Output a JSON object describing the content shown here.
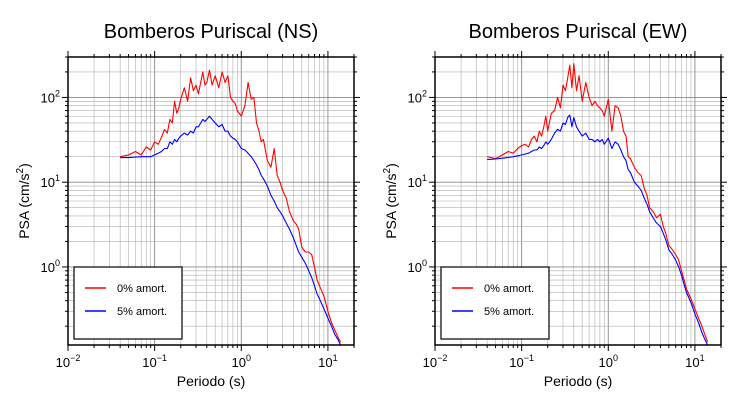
{
  "chart_data": [
    {
      "type": "line",
      "title": "Bomberos Puriscal (NS)",
      "xlabel": "Periodo (s)",
      "ylabel": "PSA (cm/s²)",
      "ylabel_main": "PSA (cm/s",
      "ylabel_sup": "2",
      "ylabel_close": ")",
      "x_scale": "log",
      "y_scale": "log",
      "xlim": [
        0.01,
        20
      ],
      "ylim": [
        0.12,
        300
      ],
      "grid": true,
      "legend_position": "bottom-left",
      "x_ticks": [
        {
          "value": 0.01,
          "base": "10",
          "exp": "−2"
        },
        {
          "value": 0.1,
          "base": "10",
          "exp": "−1"
        },
        {
          "value": 1,
          "base": "10",
          "exp": "0"
        },
        {
          "value": 10,
          "base": "10",
          "exp": "1"
        }
      ],
      "y_ticks": [
        {
          "value": 1,
          "base": "10",
          "exp": "0"
        },
        {
          "value": 10,
          "base": "10",
          "exp": "1"
        },
        {
          "value": 100,
          "base": "10",
          "exp": "2"
        }
      ],
      "series": [
        {
          "name": "0% amort.",
          "color": "#ff0000",
          "x": [
            0.04,
            0.05,
            0.06,
            0.07,
            0.08,
            0.09,
            0.1,
            0.11,
            0.12,
            0.13,
            0.14,
            0.15,
            0.16,
            0.17,
            0.18,
            0.19,
            0.2,
            0.22,
            0.24,
            0.26,
            0.28,
            0.3,
            0.32,
            0.34,
            0.36,
            0.38,
            0.4,
            0.43,
            0.46,
            0.5,
            0.55,
            0.6,
            0.65,
            0.7,
            0.75,
            0.8,
            0.85,
            0.9,
            1.0,
            1.1,
            1.2,
            1.3,
            1.4,
            1.5,
            1.6,
            1.7,
            1.8,
            2.0,
            2.2,
            2.4,
            2.6,
            2.8,
            3.0,
            3.3,
            3.6,
            4.0,
            4.3,
            4.6,
            5.0,
            5.5,
            6.0,
            6.5,
            7.0,
            7.5,
            8.0,
            9.0,
            10.0,
            11.0,
            12.0,
            13.0,
            14.0
          ],
          "y": [
            20,
            21,
            23,
            21,
            26,
            24,
            30,
            28,
            34,
            42,
            38,
            55,
            50,
            90,
            65,
            75,
            95,
            130,
            90,
            170,
            120,
            140,
            110,
            150,
            200,
            140,
            150,
            210,
            140,
            180,
            130,
            200,
            150,
            180,
            100,
            90,
            85,
            70,
            60,
            80,
            150,
            95,
            100,
            50,
            40,
            30,
            32,
            18,
            15,
            25,
            12,
            10,
            8,
            6.5,
            4.5,
            3.5,
            3.2,
            2.8,
            1.7,
            1.5,
            1.5,
            1.4,
            1.0,
            0.7,
            0.6,
            0.45,
            0.3,
            0.22,
            0.18,
            0.15,
            0.13
          ]
        },
        {
          "name": "5% amort.",
          "color": "#0000ff",
          "x": [
            0.04,
            0.05,
            0.06,
            0.07,
            0.08,
            0.09,
            0.1,
            0.11,
            0.12,
            0.13,
            0.14,
            0.15,
            0.16,
            0.17,
            0.18,
            0.19,
            0.2,
            0.22,
            0.24,
            0.26,
            0.28,
            0.3,
            0.32,
            0.34,
            0.36,
            0.38,
            0.4,
            0.43,
            0.46,
            0.5,
            0.55,
            0.6,
            0.65,
            0.7,
            0.75,
            0.8,
            0.85,
            0.9,
            1.0,
            1.1,
            1.2,
            1.3,
            1.4,
            1.5,
            1.6,
            1.7,
            1.8,
            2.0,
            2.2,
            2.4,
            2.6,
            2.8,
            3.0,
            3.3,
            3.6,
            4.0,
            4.3,
            4.6,
            5.0,
            5.5,
            6.0,
            6.5,
            7.0,
            7.5,
            8.0,
            9.0,
            10.0,
            11.0,
            12.0,
            13.0,
            14.0
          ],
          "y": [
            19.5,
            19.5,
            19.8,
            20,
            20,
            20,
            21,
            22,
            23,
            25,
            25,
            30,
            28,
            32,
            30,
            33,
            35,
            38,
            36,
            40,
            38,
            45,
            45,
            50,
            55,
            52,
            55,
            60,
            55,
            50,
            45,
            48,
            40,
            40,
            35,
            33,
            32,
            30,
            25,
            24,
            22,
            20,
            18,
            16,
            14,
            12,
            11,
            9,
            7,
            6,
            5,
            4.5,
            4,
            3.3,
            2.8,
            2.2,
            1.8,
            1.5,
            1.3,
            1.1,
            0.9,
            0.75,
            0.6,
            0.48,
            0.42,
            0.32,
            0.25,
            0.2,
            0.16,
            0.14,
            0.12
          ]
        }
      ]
    },
    {
      "type": "line",
      "title": "Bomberos Puriscal (EW)",
      "xlabel": "Periodo (s)",
      "ylabel": "PSA (cm/s²)",
      "ylabel_main": "PSA (cm/s",
      "ylabel_sup": "2",
      "ylabel_close": ")",
      "x_scale": "log",
      "y_scale": "log",
      "xlim": [
        0.01,
        20
      ],
      "ylim": [
        0.12,
        300
      ],
      "grid": true,
      "legend_position": "bottom-left",
      "x_ticks": [
        {
          "value": 0.01,
          "base": "10",
          "exp": "−2"
        },
        {
          "value": 0.1,
          "base": "10",
          "exp": "−1"
        },
        {
          "value": 1,
          "base": "10",
          "exp": "0"
        },
        {
          "value": 10,
          "base": "10",
          "exp": "1"
        }
      ],
      "y_ticks": [
        {
          "value": 1,
          "base": "10",
          "exp": "0"
        },
        {
          "value": 10,
          "base": "10",
          "exp": "1"
        },
        {
          "value": 100,
          "base": "10",
          "exp": "2"
        }
      ],
      "series": [
        {
          "name": "0% amort.",
          "color": "#ff0000",
          "x": [
            0.04,
            0.05,
            0.06,
            0.07,
            0.08,
            0.09,
            0.1,
            0.11,
            0.12,
            0.13,
            0.14,
            0.15,
            0.16,
            0.17,
            0.18,
            0.19,
            0.2,
            0.22,
            0.24,
            0.26,
            0.28,
            0.3,
            0.32,
            0.34,
            0.36,
            0.38,
            0.4,
            0.43,
            0.46,
            0.5,
            0.55,
            0.6,
            0.65,
            0.7,
            0.75,
            0.8,
            0.85,
            0.9,
            1.0,
            1.1,
            1.2,
            1.3,
            1.4,
            1.5,
            1.6,
            1.7,
            1.8,
            2.0,
            2.2,
            2.4,
            2.6,
            2.8,
            3.0,
            3.3,
            3.6,
            4.0,
            4.3,
            4.6,
            5.0,
            5.5,
            6.0,
            6.5,
            7.0,
            7.5,
            8.0,
            9.0,
            10.0,
            11.0,
            12.0,
            13.0,
            14.0
          ],
          "y": [
            20,
            19,
            21,
            23,
            22,
            25,
            27,
            28,
            26,
            32,
            35,
            30,
            40,
            35,
            45,
            60,
            40,
            65,
            70,
            100,
            75,
            140,
            120,
            170,
            240,
            130,
            250,
            120,
            180,
            90,
            150,
            100,
            80,
            90,
            80,
            75,
            70,
            60,
            95,
            40,
            80,
            75,
            60,
            40,
            35,
            20,
            19,
            15,
            13,
            12,
            8.5,
            7,
            5,
            4.5,
            3.8,
            4.2,
            3.0,
            2.5,
            1.8,
            1.6,
            1.4,
            1.2,
            0.9,
            0.7,
            0.55,
            0.42,
            0.32,
            0.25,
            0.2,
            0.16,
            0.13
          ]
        },
        {
          "name": "5% amort.",
          "color": "#0000ff",
          "x": [
            0.04,
            0.05,
            0.06,
            0.07,
            0.08,
            0.09,
            0.1,
            0.11,
            0.12,
            0.13,
            0.14,
            0.15,
            0.16,
            0.17,
            0.18,
            0.19,
            0.2,
            0.22,
            0.24,
            0.26,
            0.28,
            0.3,
            0.32,
            0.34,
            0.36,
            0.38,
            0.4,
            0.43,
            0.46,
            0.5,
            0.55,
            0.6,
            0.65,
            0.7,
            0.75,
            0.8,
            0.85,
            0.9,
            1.0,
            1.1,
            1.2,
            1.3,
            1.4,
            1.5,
            1.6,
            1.7,
            1.8,
            2.0,
            2.2,
            2.4,
            2.6,
            2.8,
            3.0,
            3.3,
            3.6,
            4.0,
            4.3,
            4.6,
            5.0,
            5.5,
            6.0,
            6.5,
            7.0,
            7.5,
            8.0,
            9.0,
            10.0,
            11.0,
            12.0,
            13.0,
            14.0
          ],
          "y": [
            18.5,
            18.8,
            19.2,
            19.6,
            20,
            20.5,
            21,
            21.5,
            22,
            23,
            24,
            24,
            26,
            25,
            27,
            30,
            28,
            32,
            38,
            42,
            40,
            50,
            48,
            58,
            62,
            45,
            58,
            45,
            40,
            35,
            38,
            32,
            32,
            30,
            32,
            30,
            32,
            28,
            33,
            25,
            30,
            28,
            24,
            20,
            18,
            14,
            13,
            10,
            9,
            8,
            6.5,
            5.5,
            4.5,
            3.8,
            3.3,
            3.0,
            2.5,
            2.1,
            1.6,
            1.4,
            1.2,
            1.0,
            0.8,
            0.62,
            0.5,
            0.38,
            0.28,
            0.22,
            0.17,
            0.14,
            0.12
          ]
        }
      ]
    }
  ]
}
